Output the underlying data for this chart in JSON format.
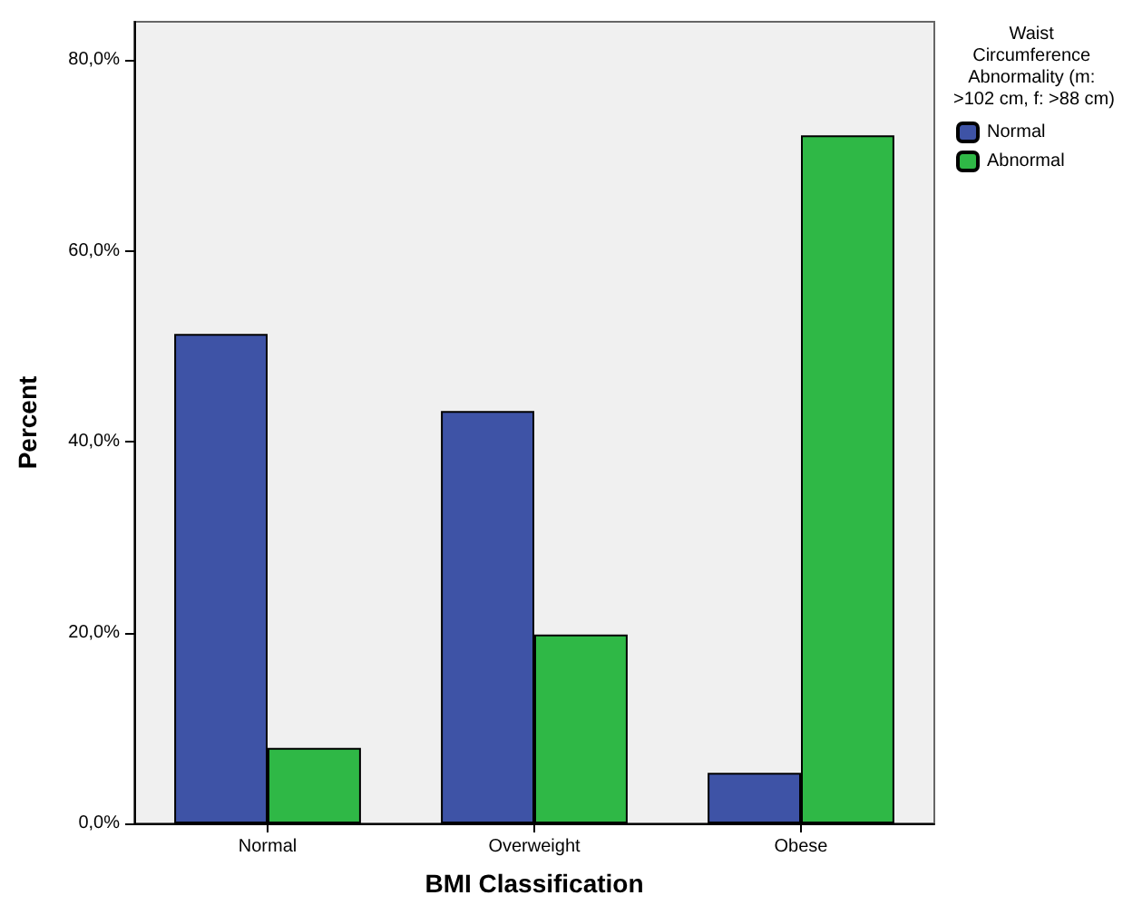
{
  "chart_data": {
    "type": "bar",
    "xlabel": "BMI Classification",
    "ylabel": "Percent",
    "legend_title": "Waist Circumference Abnormality (m: >102 cm, f: >88 cm)",
    "categories": [
      "Normal",
      "Overweight",
      "Obese"
    ],
    "series": [
      {
        "name": "Normal",
        "color": "#3e53a6",
        "values": [
          51.3,
          43.2,
          5.3
        ]
      },
      {
        "name": "Abnormal",
        "color": "#2fb846",
        "values": [
          7.9,
          19.8,
          72.1
        ]
      }
    ],
    "ylim": [
      0,
      84
    ],
    "yticks": [
      {
        "value": 0,
        "label": "0,0%"
      },
      {
        "value": 20,
        "label": "20,0%"
      },
      {
        "value": 40,
        "label": "40,0%"
      },
      {
        "value": 60,
        "label": "60,0%"
      },
      {
        "value": 80,
        "label": "80,0%"
      }
    ],
    "grid": false,
    "legend": "top right"
  }
}
